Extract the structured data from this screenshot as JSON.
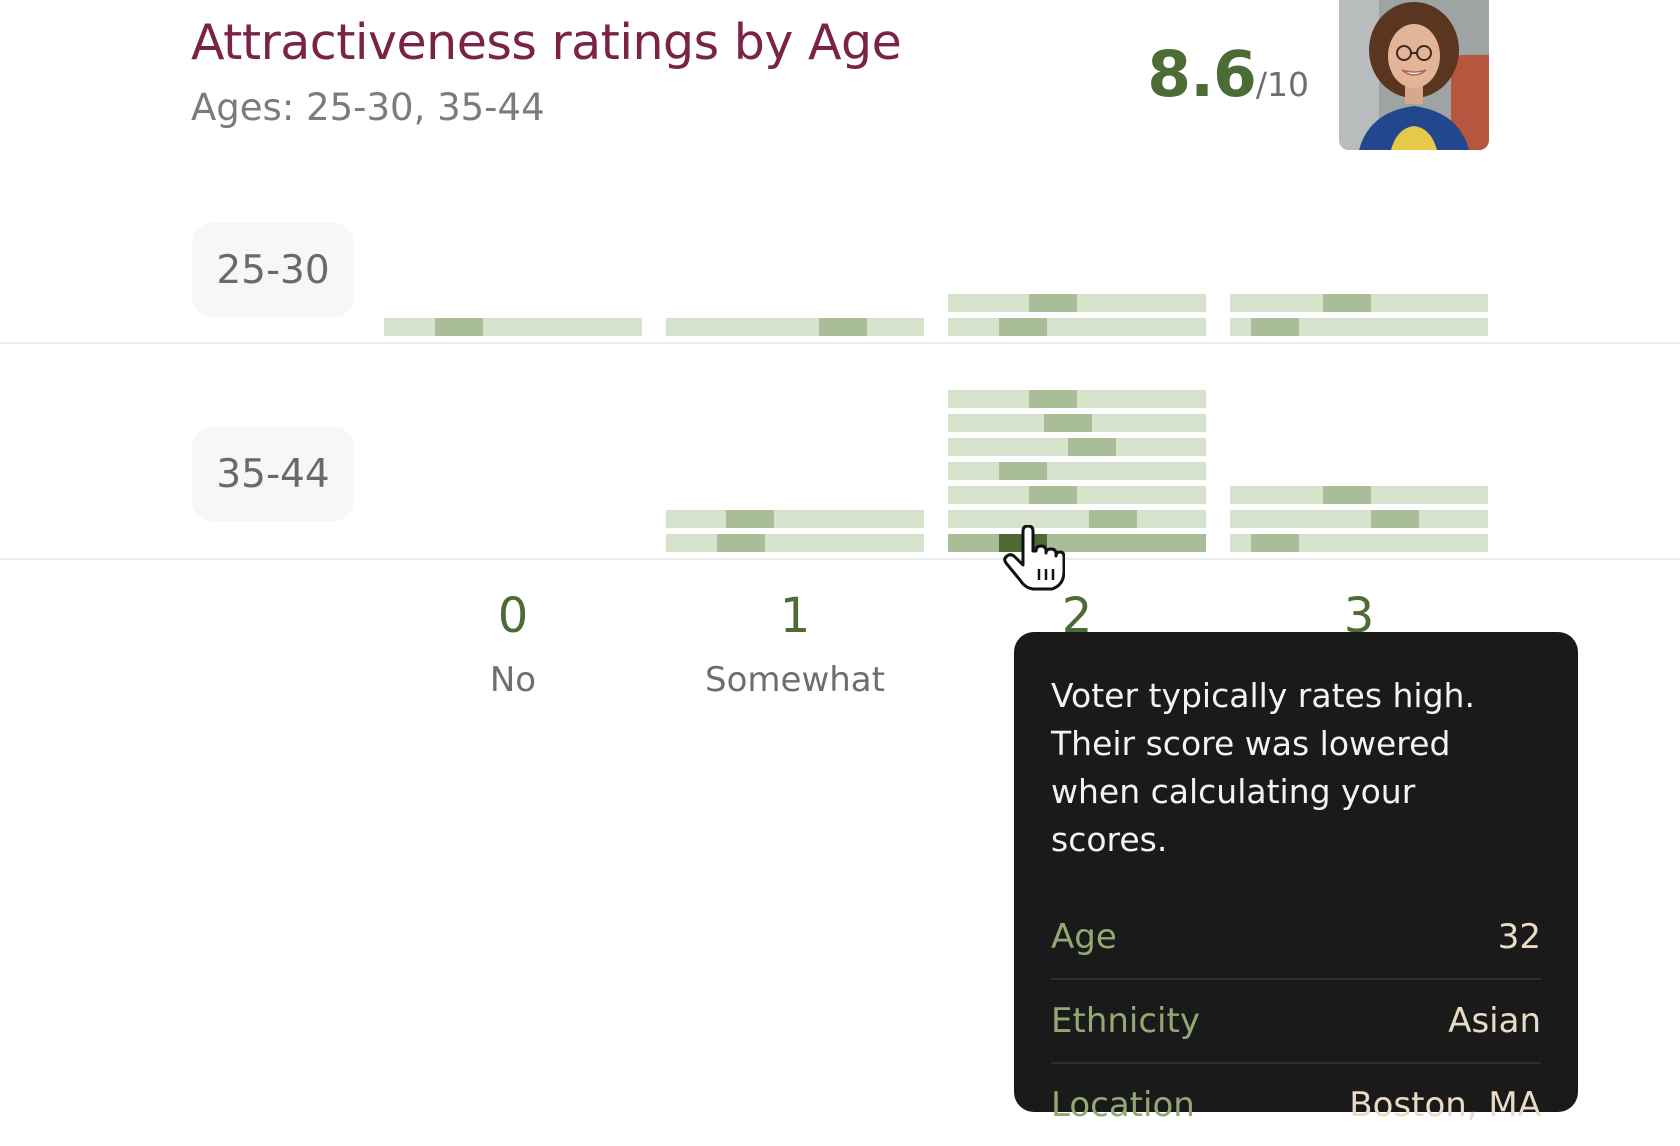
{
  "header": {
    "title": "Attractiveness ratings by Age",
    "subtitle": "Ages: 25-30, 35-44",
    "score_value": "8.6",
    "score_denominator": "/10"
  },
  "groups": [
    {
      "label": "25-30"
    },
    {
      "label": "35-44"
    }
  ],
  "columns": [
    {
      "number": "0",
      "word": "No"
    },
    {
      "number": "1",
      "word": "Somewhat"
    },
    {
      "number": "2",
      "word": ""
    },
    {
      "number": "3",
      "word": ""
    }
  ],
  "tooltip": {
    "message": "Voter typically rates high. Their score was lowered when calculating your scores.",
    "rows": [
      {
        "label": "Age",
        "value": "32"
      },
      {
        "label": "Ethnicity",
        "value": "Asian"
      },
      {
        "label": "Location",
        "value": "Boston, MA"
      }
    ]
  },
  "colors": {
    "title": "#7a2347",
    "score": "#4c6b35",
    "bar_track": "#d7e2cc",
    "bar_marker": "#a8bd98",
    "bar_active": "#4d6a35",
    "tooltip_bg": "#1a1a1a",
    "tooltip_label": "#93a874",
    "tooltip_value": "#e9dcc6"
  },
  "icons": {
    "cursor": "hand-pointer-icon",
    "avatar": "profile-photo"
  }
}
